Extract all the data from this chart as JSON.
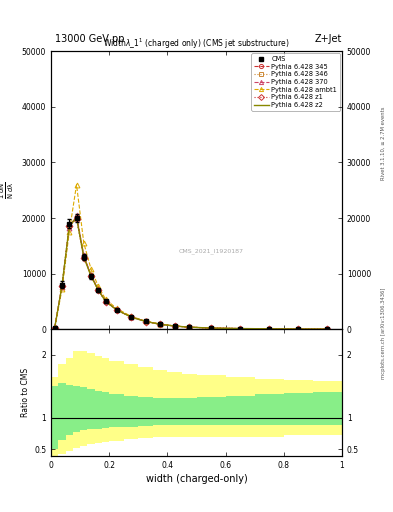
{
  "title_top": "13000 GeV pp",
  "title_right": "Z+Jet",
  "plot_title": "Width$\\lambda\\_1^1$ (charged only) (CMS jet substructure)",
  "xlabel": "width (charged-only)",
  "ylabel_ratio": "Ratio to CMS",
  "right_label_bottom": "mcplots.cern.ch [arXiv:1306.3436]",
  "right_label_top": "Rivet 3.1.10, ≥ 2.7M events",
  "watermark": "CMS_2021_I1920187",
  "xlim": [
    0,
    1
  ],
  "ylim_main": [
    0,
    50000
  ],
  "ylim_ratio": [
    0.4,
    2.4
  ],
  "bin_edges": [
    0.0,
    0.025,
    0.05,
    0.075,
    0.1,
    0.125,
    0.15,
    0.175,
    0.2,
    0.25,
    0.3,
    0.35,
    0.4,
    0.45,
    0.5,
    0.6,
    0.7,
    0.8,
    0.9,
    1.0
  ],
  "cms_data_y": [
    300,
    8000,
    19000,
    20000,
    13000,
    9500,
    7000,
    5000,
    3500,
    2200,
    1400,
    900,
    580,
    380,
    220,
    130,
    80,
    50,
    30
  ],
  "cms_data_yerr": [
    100,
    600,
    800,
    800,
    500,
    400,
    300,
    220,
    160,
    100,
    65,
    42,
    28,
    20,
    14,
    10,
    8,
    6,
    4
  ],
  "pythia_345_y": [
    280,
    7800,
    18500,
    20200,
    13100,
    9600,
    7100,
    5050,
    3520,
    2210,
    1410,
    910,
    585,
    382,
    222,
    132,
    81,
    51,
    31
  ],
  "pythia_346_y": [
    290,
    7900,
    18700,
    20100,
    13050,
    9550,
    7050,
    5020,
    3510,
    2205,
    1405,
    905,
    582,
    380,
    221,
    131,
    80,
    50,
    30
  ],
  "pythia_370_y": [
    270,
    7600,
    18200,
    20500,
    13300,
    9700,
    7200,
    5100,
    3560,
    2230,
    1420,
    920,
    590,
    386,
    224,
    133,
    82,
    52,
    32
  ],
  "pythia_ambt1_y": [
    250,
    7200,
    17500,
    26000,
    15500,
    10800,
    7700,
    5400,
    3750,
    2330,
    1470,
    945,
    605,
    395,
    228,
    135,
    84,
    53,
    33
  ],
  "pythia_z1_y": [
    285,
    7850,
    18600,
    19800,
    12900,
    9500,
    7000,
    4980,
    3490,
    2190,
    1395,
    898,
    578,
    378,
    219,
    130,
    79,
    49,
    29
  ],
  "pythia_z2_y": [
    282,
    7820,
    18550,
    20050,
    13020,
    9530,
    7030,
    5010,
    3505,
    2200,
    1402,
    902,
    580,
    379,
    220,
    131,
    80,
    50,
    30
  ],
  "color_345": "#cc3333",
  "color_346": "#cc8833",
  "color_370": "#cc4466",
  "color_ambt1": "#ddaa00",
  "color_z1": "#cc3333",
  "color_z2": "#888800",
  "ls_345": "--",
  "ls_346": ":",
  "ls_370": "--",
  "ls_ambt1": "--",
  "ls_z1": ":",
  "ls_z2": "-",
  "marker_345": "o",
  "marker_346": "s",
  "marker_370": "^",
  "marker_ambt1": "^",
  "marker_z1": "D",
  "yticks_main": [
    0,
    10000,
    20000,
    30000,
    40000,
    50000
  ],
  "ytick_labels_main": [
    "0",
    "10000",
    "20000",
    "30000",
    "40000",
    "50000"
  ],
  "ratio_bin_edges": [
    0.0,
    0.025,
    0.05,
    0.075,
    0.1,
    0.125,
    0.15,
    0.175,
    0.2,
    0.25,
    0.3,
    0.35,
    0.4,
    0.45,
    0.5,
    0.6,
    0.7,
    0.8,
    0.9,
    1.0
  ],
  "ratio_green_lo": [
    0.5,
    0.65,
    0.72,
    0.78,
    0.8,
    0.82,
    0.83,
    0.84,
    0.85,
    0.86,
    0.87,
    0.88,
    0.88,
    0.88,
    0.88,
    0.88,
    0.88,
    0.88,
    0.88
  ],
  "ratio_green_hi": [
    1.5,
    1.55,
    1.52,
    1.5,
    1.48,
    1.45,
    1.43,
    1.4,
    1.38,
    1.35,
    1.33,
    1.32,
    1.32,
    1.32,
    1.33,
    1.35,
    1.37,
    1.39,
    1.4
  ],
  "ratio_yellow_lo": [
    0.35,
    0.42,
    0.48,
    0.52,
    0.55,
    0.58,
    0.6,
    0.62,
    0.64,
    0.66,
    0.68,
    0.7,
    0.7,
    0.7,
    0.7,
    0.7,
    0.7,
    0.72,
    0.73
  ],
  "ratio_yellow_hi": [
    1.65,
    1.85,
    1.95,
    2.05,
    2.05,
    2.02,
    1.98,
    1.95,
    1.9,
    1.85,
    1.8,
    1.75,
    1.72,
    1.7,
    1.68,
    1.65,
    1.62,
    1.6,
    1.58
  ]
}
